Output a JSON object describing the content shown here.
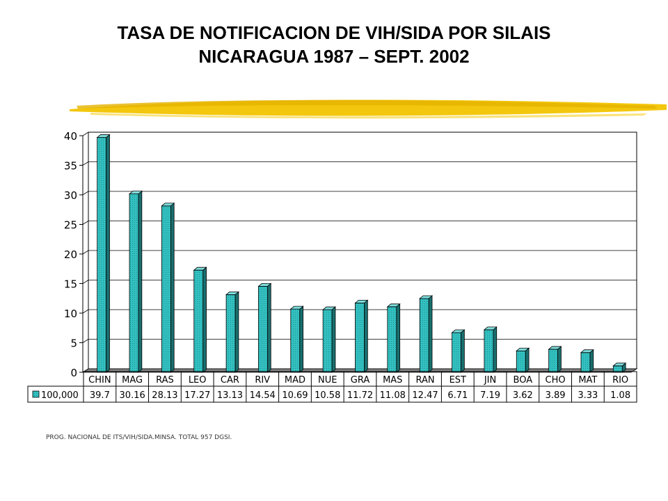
{
  "title_line1": "TASA DE NOTIFICACION DE VIH/SIDA POR SILAIS",
  "title_line2": "NICARAGUA  1987 – SEPT. 2002",
  "source": "PROG. NACIONAL DE ITS/VIH/SIDA.MINSA. TOTAL 957 DGSI.",
  "colors": {
    "bar": "#33c0c0",
    "bar_side": "#1a6f6f",
    "bar_top": "#7fdcdc",
    "accent_brush": "#f2c400"
  },
  "chart_data": {
    "type": "bar",
    "categories": [
      "CHIN",
      "MAG",
      "RAS",
      "LEO",
      "CAR",
      "RIV",
      "MAD",
      "NUE",
      "GRA",
      "MAS",
      "RAN",
      "EST",
      "JIN",
      "BOA",
      "CHO",
      "MAT",
      "RIO"
    ],
    "series": [
      {
        "name": "100,000",
        "values": [
          39.7,
          30.16,
          28.13,
          17.27,
          13.13,
          14.54,
          10.69,
          10.58,
          11.72,
          11.08,
          12.47,
          6.71,
          7.19,
          3.62,
          3.89,
          3.33,
          1.08
        ],
        "labels": [
          "39.7",
          "30.16",
          "28.13",
          "17.27",
          "13.13",
          "14.54",
          "10.69",
          "10.58",
          "11.72",
          "11.08",
          "12.47",
          "6.71",
          "7.19",
          "3.62",
          "3.89",
          "3.33",
          "1.08"
        ]
      }
    ],
    "ylim": [
      0,
      40
    ],
    "yticks": [
      "0",
      "5",
      "10",
      "15",
      "20",
      "25",
      "30",
      "35",
      "40"
    ],
    "grid": true,
    "legend_in_data_table": true
  }
}
